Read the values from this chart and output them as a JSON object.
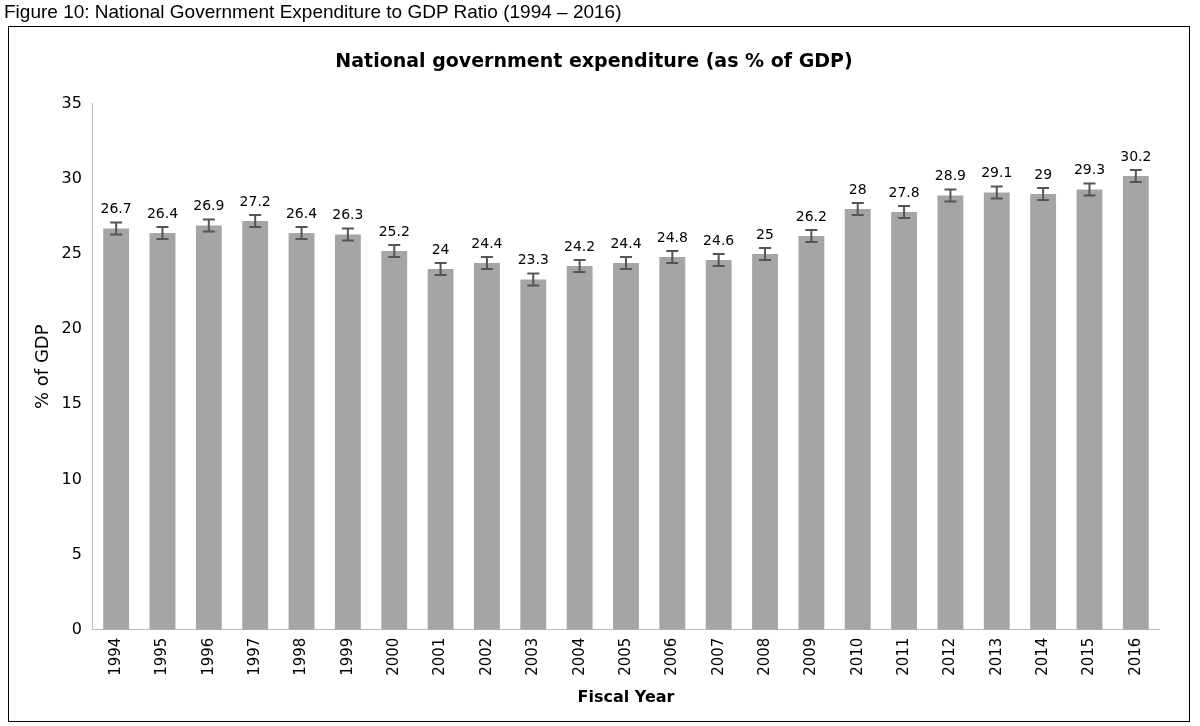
{
  "chart_data": {
    "type": "bar",
    "title": "National government expenditure (as % of GDP)",
    "xlabel": "Fiscal Year",
    "ylabel": "% of GDP",
    "annotations": [
      "Figure 10: National Government Expenditure to GDP Ratio (1994 – 2016)"
    ],
    "categories": [
      "1994",
      "1995",
      "1996",
      "1997",
      "1998",
      "1999",
      "2000",
      "2001",
      "2002",
      "2003",
      "2004",
      "2005",
      "2006",
      "2007",
      "2008",
      "2009",
      "2010",
      "2011",
      "2012",
      "2013",
      "2014",
      "2015",
      "2016"
    ],
    "values": [
      26.7,
      26.4,
      26.9,
      27.2,
      26.4,
      26.3,
      25.2,
      24,
      24.4,
      23.3,
      24.2,
      24.4,
      24.8,
      24.6,
      25,
      26.2,
      28,
      27.8,
      28.9,
      29.1,
      29,
      29.3,
      30.2
    ],
    "errors": [
      0.4,
      0.4,
      0.4,
      0.4,
      0.4,
      0.4,
      0.4,
      0.4,
      0.4,
      0.4,
      0.4,
      0.4,
      0.4,
      0.4,
      0.4,
      0.4,
      0.4,
      0.4,
      0.4,
      0.4,
      0.4,
      0.4,
      0.4
    ],
    "color": "#a5a5a5",
    "ylim": [
      0,
      35
    ],
    "yticks": [
      0,
      5,
      10,
      15,
      20,
      25,
      30,
      35
    ],
    "grid": false,
    "legend": false,
    "data_labels": true
  }
}
